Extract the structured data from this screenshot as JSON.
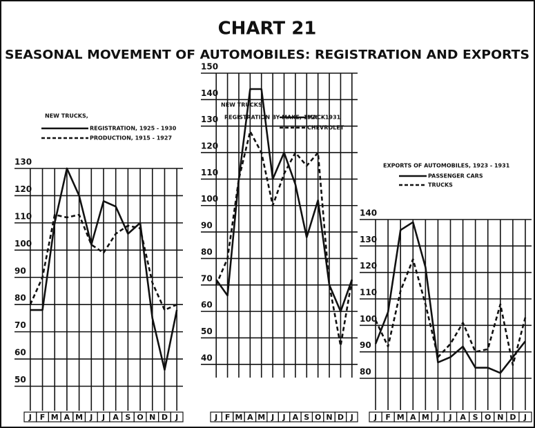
{
  "title": "CHART 21",
  "subtitle": "SEASONAL MOVEMENT OF AUTOMOBILES: REGISTRATION AND EXPORTS",
  "chart_data": [
    {
      "type": "line",
      "title": "NEW TRUCKS,",
      "categories": [
        "J",
        "F",
        "M",
        "A",
        "M",
        "J",
        "J",
        "A",
        "S",
        "O",
        "N",
        "D",
        "J"
      ],
      "series": [
        {
          "name": "REGISTRATION, 1925 - 1930",
          "color": "#111111",
          "dash": false,
          "values": [
            78,
            78,
            110,
            130,
            120,
            102,
            118,
            116,
            106,
            110,
            75,
            56,
            78
          ]
        },
        {
          "name": "PRODUCTION, 1915 - 1927",
          "color": "#111111",
          "dash": true,
          "values": [
            80,
            90,
            113,
            112,
            113,
            102,
            99,
            106,
            109,
            108,
            88,
            78,
            80
          ]
        }
      ],
      "ylim": [
        41,
        130
      ],
      "yticks": [
        50,
        60,
        70,
        80,
        90,
        100,
        110,
        120,
        130
      ],
      "grid": true
    },
    {
      "type": "line",
      "title": "NEW TRUCKS,",
      "subtitle": "REGISTRATION BY MAKE, 1926 - 1931",
      "categories": [
        "J",
        "F",
        "M",
        "A",
        "M",
        "J",
        "J",
        "A",
        "S",
        "O",
        "N",
        "D",
        "J"
      ],
      "series": [
        {
          "name": "MACK",
          "color": "#111111",
          "dash": false,
          "values": [
            72,
            66,
            110,
            144,
            144,
            110,
            120,
            108,
            88,
            102,
            70,
            60,
            72
          ]
        },
        {
          "name": "CHEVROLET",
          "color": "#111111",
          "dash": true,
          "values": [
            70,
            80,
            110,
            128,
            120,
            100,
            112,
            120,
            115,
            120,
            70,
            47,
            72
          ]
        }
      ],
      "ylim": [
        35,
        150
      ],
      "yticks": [
        40,
        50,
        60,
        70,
        80,
        90,
        100,
        110,
        120,
        130,
        140,
        150
      ],
      "grid": true
    },
    {
      "type": "line",
      "title": "EXPORTS OF AUTOMOBILES, 1923 - 1931",
      "categories": [
        "J",
        "F",
        "M",
        "A",
        "M",
        "J",
        "J",
        "A",
        "S",
        "O",
        "N",
        "D",
        "J"
      ],
      "series": [
        {
          "name": "PASSENGER CARS",
          "color": "#111111",
          "dash": false,
          "values": [
            93,
            105,
            136,
            139,
            122,
            86,
            88,
            92,
            84,
            84,
            82,
            88,
            94
          ]
        },
        {
          "name": "TRUCKS",
          "color": "#111111",
          "dash": true,
          "values": [
            102,
            92,
            113,
            125,
            108,
            88,
            93,
            101,
            90,
            91,
            108,
            85,
            103
          ]
        }
      ],
      "ylim": [
        68,
        140
      ],
      "yticks": [
        80,
        90,
        100,
        110,
        120,
        130,
        140
      ],
      "grid": true
    }
  ]
}
